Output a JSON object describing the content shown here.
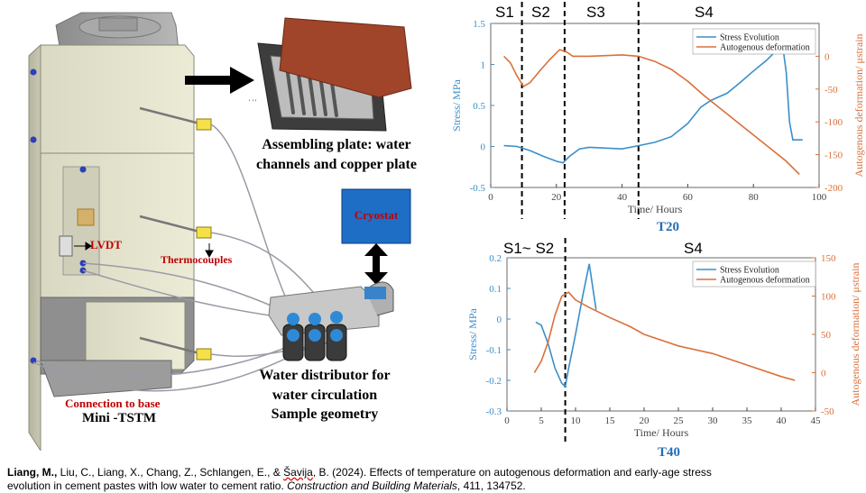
{
  "figure": {
    "labels": {
      "lvdt": "LVDT",
      "thermocouples": "Thermocouples",
      "connection": "Connection to base",
      "mini_tstm": "Mini -TSTM",
      "plate_caption_1": "Assembling plate: water",
      "plate_caption_2": "channels and copper plate",
      "cryostat": "Cryostat",
      "distributor_1": "Water distributor for",
      "distributor_2": "water circulation",
      "distributor_3": "Sample geometry",
      "plate_marks": "' ' '"
    }
  },
  "chart_data": [
    {
      "type": "line",
      "title": "T20",
      "xlabel": "Time/ Hours",
      "ylabel": "Stress/ MPa",
      "y2label": "Autogenous deformation/ μstrain",
      "xlim": [
        0,
        100
      ],
      "ylim": [
        -0.5,
        1.5
      ],
      "y2lim": [
        -200,
        50
      ],
      "xticks": [
        "0",
        "20",
        "40",
        "60",
        "80",
        "100"
      ],
      "yticks": [
        "-0.5",
        "0",
        "0.5",
        "1",
        "1.5"
      ],
      "y2ticks": [
        "-200",
        "-150",
        "-100",
        "-50",
        "0"
      ],
      "stages": [
        "S1",
        "S2",
        "S3",
        "S4"
      ],
      "stage_lines": [
        9.5,
        22.5,
        45
      ],
      "legend": [
        "Stress Evolution",
        "Autogenous deformation"
      ],
      "legend_position": "top-right",
      "colors": {
        "stress": "#3a8fc9",
        "deformation": "#d9703a"
      },
      "series": [
        {
          "name": "Stress Evolution",
          "axis": "left",
          "points": [
            [
              4,
              0.01
            ],
            [
              8,
              0.0
            ],
            [
              12,
              -0.05
            ],
            [
              16,
              -0.12
            ],
            [
              20,
              -0.18
            ],
            [
              22,
              -0.2
            ],
            [
              24,
              -0.12
            ],
            [
              27,
              -0.03
            ],
            [
              30,
              -0.01
            ],
            [
              35,
              -0.02
            ],
            [
              40,
              -0.03
            ],
            [
              45,
              0.01
            ],
            [
              50,
              0.05
            ],
            [
              55,
              0.12
            ],
            [
              60,
              0.28
            ],
            [
              64,
              0.48
            ],
            [
              67,
              0.56
            ],
            [
              72,
              0.65
            ],
            [
              76,
              0.78
            ],
            [
              80,
              0.92
            ],
            [
              84,
              1.05
            ],
            [
              87,
              1.17
            ],
            [
              89,
              1.2
            ],
            [
              90,
              0.9
            ],
            [
              91,
              0.3
            ],
            [
              92,
              0.08
            ],
            [
              95,
              0.08
            ]
          ]
        },
        {
          "name": "Autogenous deformation",
          "axis": "right",
          "points": [
            [
              4,
              0
            ],
            [
              6,
              -10
            ],
            [
              8,
              -30
            ],
            [
              10,
              -46
            ],
            [
              12,
              -40
            ],
            [
              15,
              -22
            ],
            [
              18,
              -5
            ],
            [
              21,
              10
            ],
            [
              23,
              7
            ],
            [
              25,
              0
            ],
            [
              30,
              0
            ],
            [
              40,
              2
            ],
            [
              45,
              0
            ],
            [
              50,
              -8
            ],
            [
              55,
              -20
            ],
            [
              60,
              -38
            ],
            [
              65,
              -60
            ],
            [
              70,
              -80
            ],
            [
              75,
              -100
            ],
            [
              80,
              -120
            ],
            [
              85,
              -140
            ],
            [
              90,
              -160
            ],
            [
              94,
              -180
            ]
          ]
        }
      ]
    },
    {
      "type": "line",
      "title": "T40",
      "xlabel": "Time/ Hours",
      "ylabel": "Stress/ MPa",
      "y2label": "Autogenous deformation/ μstrain",
      "xlim": [
        0,
        45
      ],
      "ylim": [
        -0.3,
        0.2
      ],
      "y2lim": [
        -50,
        150
      ],
      "xticks": [
        "0",
        "5",
        "10",
        "15",
        "20",
        "25",
        "30",
        "35",
        "40",
        "45"
      ],
      "yticks": [
        "-0.3",
        "-0.2",
        "-0.1",
        "0",
        "0.1",
        "0.2"
      ],
      "y2ticks": [
        "-50",
        "0",
        "50",
        "100",
        "150"
      ],
      "stages": [
        "S1~ S2",
        "S4"
      ],
      "stage_lines": [
        8.5
      ],
      "legend": [
        "Stress Evolution",
        "Autogenous deformation"
      ],
      "legend_position": "top-right",
      "colors": {
        "stress": "#3a8fc9",
        "deformation": "#d9703a"
      },
      "series": [
        {
          "name": "Stress Evolution",
          "axis": "left",
          "points": [
            [
              4.2,
              -0.01
            ],
            [
              5,
              -0.02
            ],
            [
              6,
              -0.08
            ],
            [
              7,
              -0.16
            ],
            [
              8,
              -0.21
            ],
            [
              8.5,
              -0.22
            ],
            [
              9,
              -0.16
            ],
            [
              10,
              -0.05
            ],
            [
              11,
              0.07
            ],
            [
              12,
              0.18
            ],
            [
              13,
              0.03
            ]
          ]
        },
        {
          "name": "Autogenous deformation",
          "axis": "right",
          "points": [
            [
              4,
              0
            ],
            [
              5,
              15
            ],
            [
              6,
              40
            ],
            [
              7,
              75
            ],
            [
              8,
              100
            ],
            [
              9,
              105
            ],
            [
              10,
              95
            ],
            [
              12,
              85
            ],
            [
              15,
              72
            ],
            [
              18,
              60
            ],
            [
              20,
              50
            ],
            [
              25,
              35
            ],
            [
              30,
              25
            ],
            [
              35,
              10
            ],
            [
              40,
              -5
            ],
            [
              42,
              -10
            ]
          ]
        }
      ]
    }
  ],
  "citation": {
    "authors_bold": "Liang, M.,",
    "authors_rest": " Liu, C., Liang, X., Chang, Z., Schlangen, E., & ",
    "author_last": "Šavija",
    "title_line1": ", B. (2024). Effects of temperature on autogenous deformation and early-age stress",
    "line2_plain": "evolution in cement pastes with low water to cement ratio. ",
    "journal": "Construction and Building Materials",
    "volume": ", 411, 134752."
  }
}
